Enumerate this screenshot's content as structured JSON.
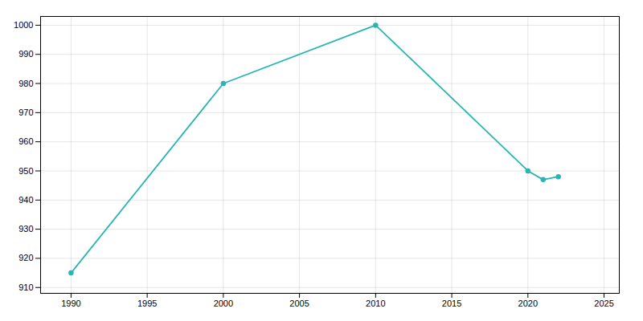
{
  "chart_data": {
    "type": "line",
    "x": [
      1990,
      2000,
      2010,
      2020,
      2021,
      2022
    ],
    "values": [
      915,
      980,
      1000,
      950,
      947,
      948
    ],
    "color": "#2ab5b5",
    "marker": "o",
    "xlim": [
      1988,
      2026
    ],
    "ylim": [
      908,
      1003
    ],
    "xticks": [
      1990,
      1995,
      2000,
      2005,
      2010,
      2015,
      2020,
      2025
    ],
    "yticks": [
      910,
      920,
      930,
      940,
      950,
      960,
      970,
      980,
      990,
      1000
    ],
    "grid": true
  }
}
